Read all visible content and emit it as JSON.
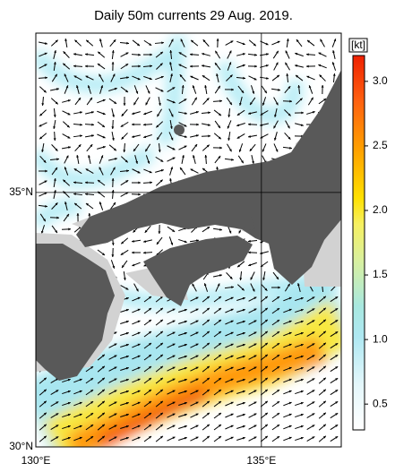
{
  "title": "Daily 50m currents 29 Aug. 2019.",
  "map": {
    "xlim": [
      130,
      136.77
    ],
    "ylim": [
      30,
      38.13
    ],
    "xticks": [
      {
        "value": 130,
        "label": "130°E"
      },
      {
        "value": 135,
        "label": "135°E"
      }
    ],
    "yticks": [
      {
        "value": 30,
        "label": "30°N"
      },
      {
        "value": 35,
        "label": "35°N"
      }
    ]
  },
  "colorbar": {
    "unit": "[kt]",
    "lim": [
      0.3,
      3.2
    ],
    "ticks": [
      0.5,
      {
        "value": 1,
        "label": "1.0"
      },
      1.5,
      {
        "value": 2,
        "label": "2.0"
      },
      2.5,
      {
        "value": 3,
        "label": "3.0"
      }
    ]
  }
}
